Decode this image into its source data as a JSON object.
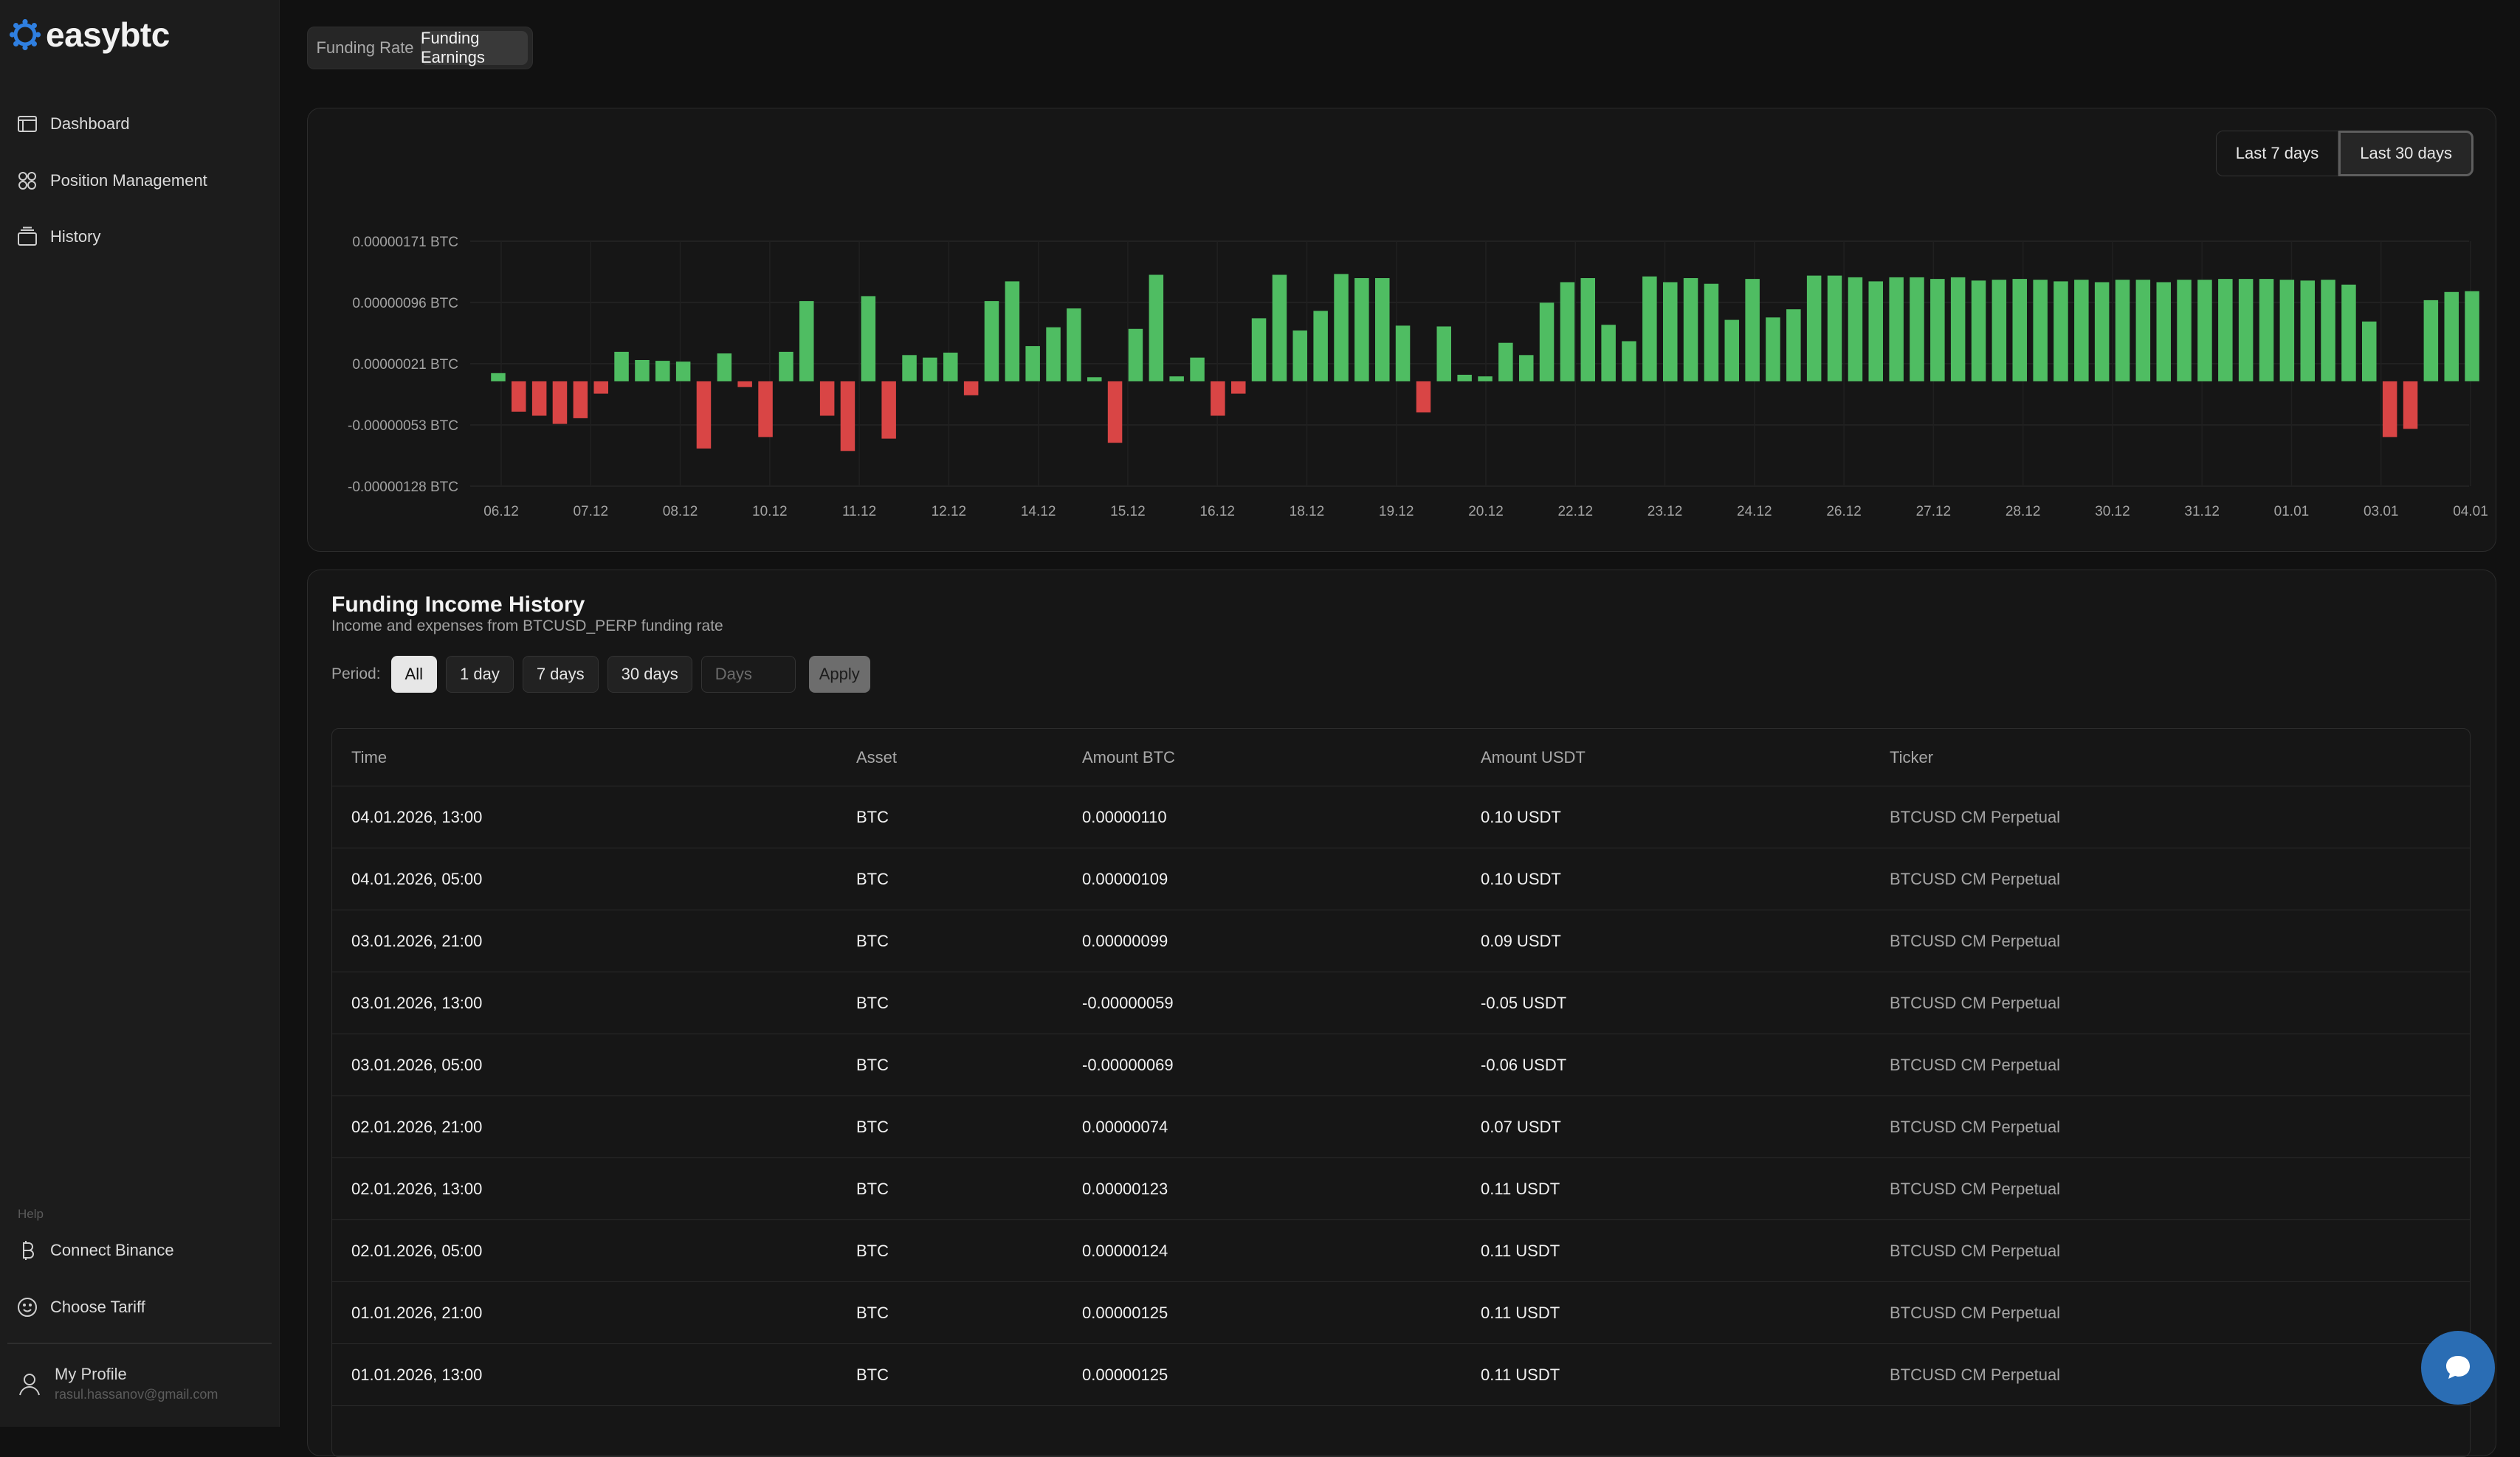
{
  "app": {
    "name": "easybtc",
    "accent_color": "#2f7fe0"
  },
  "sidebar": {
    "items": [
      {
        "label": "Dashboard",
        "icon": "dashboard-icon"
      },
      {
        "label": "Position Management",
        "icon": "grid-icon"
      },
      {
        "label": "History",
        "icon": "history-icon"
      }
    ],
    "help_label": "Help",
    "help_items": [
      {
        "label": "Connect Binance",
        "icon": "bitcoin-icon"
      },
      {
        "label": "Choose Tariff",
        "icon": "smiley-icon"
      }
    ],
    "profile": {
      "name": "My Profile",
      "email": "rasul.hassanov@gmail.com"
    }
  },
  "tabs": [
    {
      "label": "Funding Rate",
      "active": false
    },
    {
      "label": "Funding Earnings",
      "active": true
    }
  ],
  "chart_range": {
    "options": [
      "Last 7 days",
      "Last 30 days"
    ],
    "active": "Last 30 days"
  },
  "chart_data": {
    "type": "bar",
    "y_ticks": [
      "0.00000171 BTC",
      "0.00000096 BTC",
      "0.00000021 BTC",
      "-0.00000053 BTC",
      "-0.00000128 BTC"
    ],
    "ylim": [
      -1.28e-06,
      1.71e-06
    ],
    "x_tick_labels": [
      "06.12",
      "07.12",
      "08.12",
      "10.12",
      "11.12",
      "12.12",
      "14.12",
      "15.12",
      "16.12",
      "18.12",
      "19.12",
      "20.12",
      "22.12",
      "23.12",
      "24.12",
      "26.12",
      "27.12",
      "28.12",
      "30.12",
      "31.12",
      "01.01",
      "03.01",
      "04.01"
    ],
    "positive_color": "#4fbd62",
    "negative_color": "#d94545",
    "grid": true,
    "values": [
      1e-07,
      -3.7e-07,
      -4.2e-07,
      -5.2e-07,
      -4.5e-07,
      -1.5e-07,
      3.6e-07,
      2.6e-07,
      2.5e-07,
      2.4e-07,
      -8.2e-07,
      3.4e-07,
      -7e-08,
      -6.8e-07,
      3.6e-07,
      9.8e-07,
      -4.2e-07,
      -8.5e-07,
      1.04e-06,
      -7e-07,
      3.2e-07,
      2.9e-07,
      3.5e-07,
      -1.7e-07,
      9.8e-07,
      1.22e-06,
      4.3e-07,
      6.6e-07,
      8.9e-07,
      5e-08,
      -7.5e-07,
      6.4e-07,
      1.3e-06,
      6e-08,
      2.9e-07,
      -4.2e-07,
      -1.5e-07,
      7.7e-07,
      1.3e-06,
      6.2e-07,
      8.6e-07,
      1.31e-06,
      1.26e-06,
      1.26e-06,
      6.8e-07,
      -3.8e-07,
      6.7e-07,
      8e-08,
      6e-08,
      4.7e-07,
      3.2e-07,
      9.6e-07,
      1.21e-06,
      1.26e-06,
      6.9e-07,
      4.9e-07,
      1.28e-06,
      1.21e-06,
      1.26e-06,
      1.19e-06,
      7.5e-07,
      1.25e-06,
      7.8e-07,
      8.8e-07,
      1.29e-06,
      1.29e-06,
      1.27e-06,
      1.22e-06,
      1.27e-06,
      1.27e-06,
      1.25e-06,
      1.27e-06,
      1.23e-06,
      1.24e-06,
      1.25e-06,
      1.24e-06,
      1.22e-06,
      1.24e-06,
      1.21e-06,
      1.24e-06,
      1.24e-06,
      1.21e-06,
      1.24e-06,
      1.24e-06,
      1.25e-06,
      1.25e-06,
      1.25e-06,
      1.24e-06,
      1.23e-06,
      1.24e-06,
      1.18e-06,
      7.3e-07,
      -6.8e-07,
      -5.8e-07,
      9.9e-07,
      1.09e-06,
      1.1e-06
    ]
  },
  "history": {
    "title": "Funding Income History",
    "subtitle": "Income and expenses from BTCUSD_PERP funding rate",
    "period_label": "Period:",
    "period_options": [
      "All",
      "1 day",
      "7 days",
      "30 days"
    ],
    "active_period": "All",
    "days_placeholder": "Days",
    "apply_label": "Apply",
    "columns": [
      "Time",
      "Asset",
      "Amount BTC",
      "Amount USDT",
      "Ticker"
    ],
    "rows": [
      [
        "04.01.2026, 13:00",
        "BTC",
        "0.00000110",
        "0.10 USDT",
        "BTCUSD CM Perpetual"
      ],
      [
        "04.01.2026, 05:00",
        "BTC",
        "0.00000109",
        "0.10 USDT",
        "BTCUSD CM Perpetual"
      ],
      [
        "03.01.2026, 21:00",
        "BTC",
        "0.00000099",
        "0.09 USDT",
        "BTCUSD CM Perpetual"
      ],
      [
        "03.01.2026, 13:00",
        "BTC",
        "-0.00000059",
        "-0.05 USDT",
        "BTCUSD CM Perpetual"
      ],
      [
        "03.01.2026, 05:00",
        "BTC",
        "-0.00000069",
        "-0.06 USDT",
        "BTCUSD CM Perpetual"
      ],
      [
        "02.01.2026, 21:00",
        "BTC",
        "0.00000074",
        "0.07 USDT",
        "BTCUSD CM Perpetual"
      ],
      [
        "02.01.2026, 13:00",
        "BTC",
        "0.00000123",
        "0.11 USDT",
        "BTCUSD CM Perpetual"
      ],
      [
        "02.01.2026, 05:00",
        "BTC",
        "0.00000124",
        "0.11 USDT",
        "BTCUSD CM Perpetual"
      ],
      [
        "01.01.2026, 21:00",
        "BTC",
        "0.00000125",
        "0.11 USDT",
        "BTCUSD CM Perpetual"
      ],
      [
        "01.01.2026, 13:00",
        "BTC",
        "0.00000125",
        "0.11 USDT",
        "BTCUSD CM Perpetual"
      ]
    ]
  },
  "chat": {
    "icon": "chat-icon",
    "color": "#2a6db4"
  }
}
